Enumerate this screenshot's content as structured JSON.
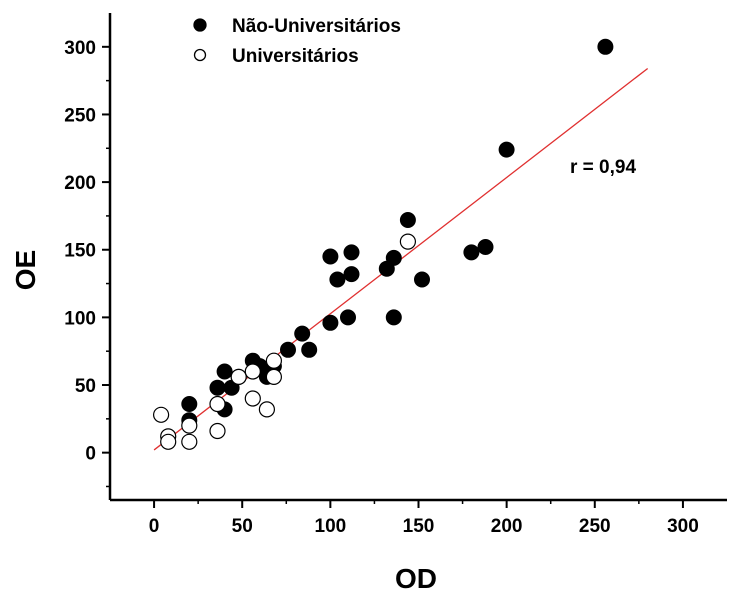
{
  "chart_data": {
    "type": "scatter",
    "title": "",
    "xlabel": "OD",
    "ylabel": "OE",
    "xlim": [
      -25,
      325
    ],
    "ylim": [
      -35,
      325
    ],
    "xticks": [
      0,
      50,
      100,
      150,
      200,
      250,
      300
    ],
    "yticks": [
      0,
      50,
      100,
      150,
      200,
      250,
      300
    ],
    "xtick_labels": [
      "0",
      "50",
      "100",
      "150",
      "200",
      "250",
      "300"
    ],
    "ytick_labels": [
      "0",
      "50",
      "100",
      "150",
      "200",
      "250",
      "300"
    ],
    "grid": false,
    "legend_position": "top-left",
    "annotation": "r = 0,94",
    "fit_line": {
      "x": [
        0,
        280
      ],
      "y": [
        2,
        284
      ],
      "color": "#e03030"
    },
    "series": [
      {
        "name": "Não-Universitários",
        "marker": "filled-circle",
        "color": "#000000",
        "points": [
          [
            20,
            36
          ],
          [
            20,
            24
          ],
          [
            36,
            48
          ],
          [
            40,
            60
          ],
          [
            40,
            32
          ],
          [
            44,
            48
          ],
          [
            48,
            56
          ],
          [
            56,
            68
          ],
          [
            60,
            64
          ],
          [
            64,
            56
          ],
          [
            68,
            64
          ],
          [
            76,
            76
          ],
          [
            84,
            88
          ],
          [
            88,
            76
          ],
          [
            100,
            145
          ],
          [
            100,
            96
          ],
          [
            104,
            128
          ],
          [
            110,
            100
          ],
          [
            112,
            148
          ],
          [
            112,
            132
          ],
          [
            132,
            136
          ],
          [
            136,
            144
          ],
          [
            136,
            100
          ],
          [
            144,
            172
          ],
          [
            152,
            128
          ],
          [
            180,
            148
          ],
          [
            188,
            152
          ],
          [
            200,
            224
          ],
          [
            256,
            300
          ]
        ]
      },
      {
        "name": "Universitários",
        "marker": "open-circle",
        "color": "#000000",
        "points": [
          [
            4,
            28
          ],
          [
            8,
            12
          ],
          [
            8,
            8
          ],
          [
            20,
            20
          ],
          [
            20,
            8
          ],
          [
            36,
            16
          ],
          [
            36,
            36
          ],
          [
            48,
            56
          ],
          [
            56,
            40
          ],
          [
            56,
            60
          ],
          [
            64,
            32
          ],
          [
            68,
            56
          ],
          [
            68,
            68
          ],
          [
            144,
            156
          ]
        ]
      }
    ]
  }
}
